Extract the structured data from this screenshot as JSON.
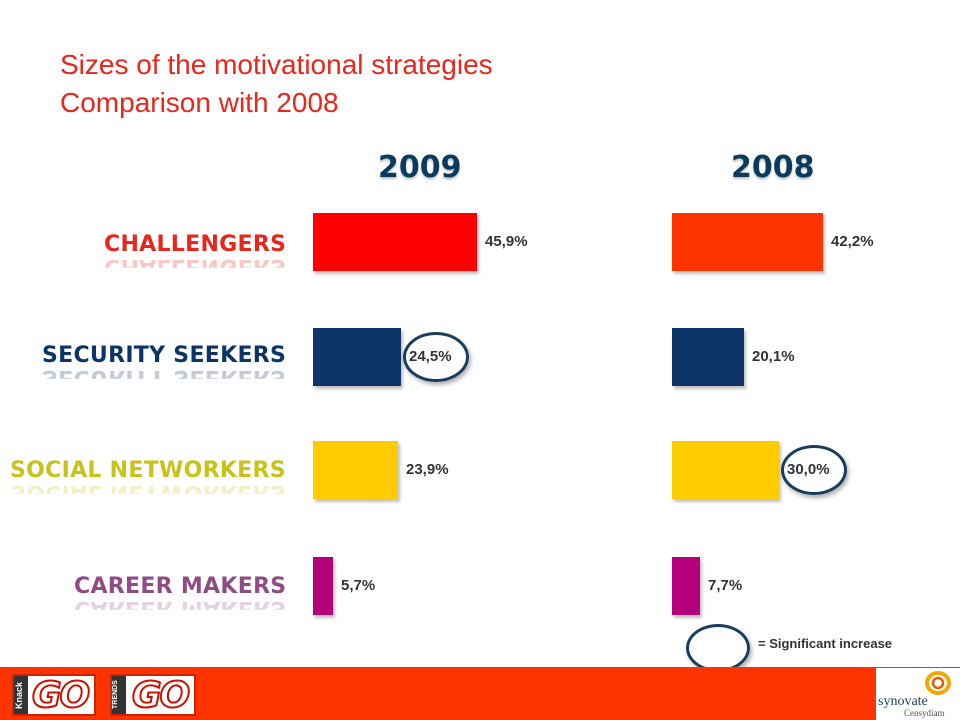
{
  "title": {
    "line1": "Sizes of the motivational strategies",
    "line2": "Comparison with 2008"
  },
  "chart_data": {
    "type": "bar",
    "orientation": "horizontal",
    "categories": [
      "CHALLENGERS",
      "SECURITY SEEKERS",
      "SOCIAL NETWORKERS",
      "CAREER MAKERS"
    ],
    "series": [
      {
        "name": "2009",
        "values": [
          45.9,
          24.5,
          23.9,
          5.7
        ],
        "labels": [
          "45,9%",
          "24,5%",
          "23,9%",
          "5,7%"
        ],
        "colors": [
          "#ff0000",
          "#0d3466",
          "#ffcc00",
          "#b5007c"
        ],
        "highlighted": [
          false,
          true,
          false,
          false
        ]
      },
      {
        "name": "2008",
        "values": [
          42.2,
          20.1,
          30.0,
          7.7
        ],
        "labels": [
          "42,2%",
          "20,1%",
          "30,0%",
          "7,7%"
        ],
        "colors": [
          "#ff3300",
          "#0d3466",
          "#ffcc00",
          "#b5007c"
        ],
        "highlighted": [
          false,
          false,
          true,
          false
        ]
      }
    ],
    "category_colors": [
      "#e8261c",
      "#0d3466",
      "#c9c21a",
      "#8e4b84"
    ],
    "unit": "%",
    "legend": "= Significant increase"
  },
  "footer": {
    "logo1_text": "GO",
    "logo1_tab": "Knack",
    "logo2_text": "GO",
    "logo2_tab": "TRENDS",
    "brand_name": "synovate",
    "brand_sub": "Censydiam",
    "background_color": "#ff3300"
  }
}
